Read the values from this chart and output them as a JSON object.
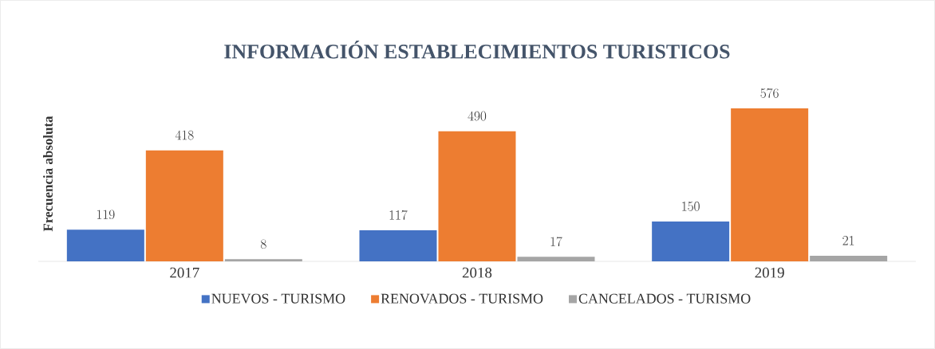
{
  "chart_data": {
    "type": "bar",
    "title": "INFORMACIÓN ESTABLECIMIENTOS TURISTICOS",
    "ylabel": "Frecuencia absoluta",
    "categories": [
      "2017",
      "2018",
      "2019"
    ],
    "series": [
      {
        "name": "NUEVOS - TURISMO",
        "color": "#4472c4",
        "values": [
          119,
          117,
          150
        ]
      },
      {
        "name": "RENOVADOS - TURISMO",
        "color": "#ed7d31",
        "values": [
          418,
          490,
          576
        ]
      },
      {
        "name": "CANCELADOS - TURISMO",
        "color": "#a5a5a5",
        "values": [
          8,
          17,
          21
        ]
      }
    ],
    "data_labels": true,
    "legend": "bottom",
    "tick_labels": "x"
  }
}
